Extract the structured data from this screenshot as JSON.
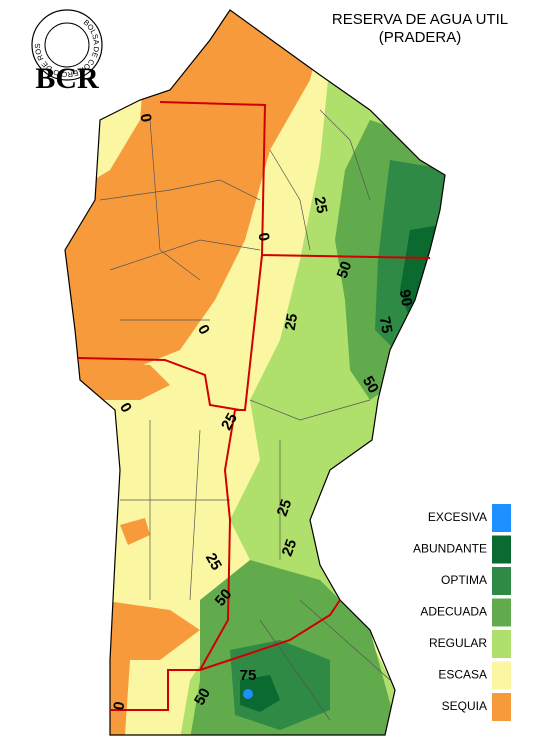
{
  "header": {
    "logo_ring": "BOLSA DE COMERCIO DE ROSARIO",
    "logo_text": "BCR",
    "title": "RESERVA DE AGUA UTIL",
    "subtitle": "(PRADERA)"
  },
  "legend": [
    {
      "label": "EXCESIVA",
      "color": "#1e8fff"
    },
    {
      "label": "ABUNDANTE",
      "color": "#0b6a30"
    },
    {
      "label": "OPTIMA",
      "color": "#2f8a46"
    },
    {
      "label": "ADECUADA",
      "color": "#62ab4c"
    },
    {
      "label": "REGULAR",
      "color": "#b0e06c"
    },
    {
      "label": "ESCASA",
      "color": "#fbf6a2"
    },
    {
      "label": "SEQUIA",
      "color": "#f79a3c"
    }
  ],
  "contour_labels": [
    0,
    25,
    0,
    50,
    90,
    25,
    75,
    0,
    50,
    0,
    25,
    25,
    25,
    25,
    50,
    75,
    50,
    0
  ]
}
